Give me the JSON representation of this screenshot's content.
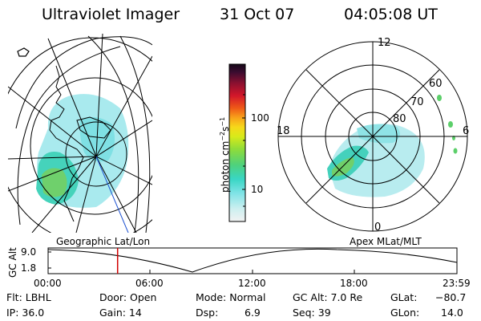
{
  "header": {
    "instrument": "Ultraviolet Imager",
    "date": "31 Oct 07",
    "time": "04:05:08 UT"
  },
  "colorbar": {
    "label": "photon cm",
    "exp1": "−2",
    "label_s": "s",
    "exp2": "−1",
    "ticks": [
      "100",
      "10"
    ]
  },
  "geo_panel": {
    "title": "Geographic Lat/Lon"
  },
  "polar_panel": {
    "title": "Apex  MLat/MLT",
    "mlt_labels": {
      "top": "12",
      "left": "18",
      "right": "6",
      "bottom": "0"
    },
    "mlat_labels": [
      "60",
      "70",
      "80"
    ]
  },
  "timeline": {
    "ylabel": "GC Alt",
    "yticks": [
      "9.0",
      "1.8"
    ],
    "xticks": [
      "00:00",
      "06:00",
      "12:00",
      "18:00",
      "23:59"
    ],
    "cursor_fraction": 0.17
  },
  "info": {
    "flt": "Flt: LBHL",
    "ip": "IP: 36.0",
    "door": "Door: Open",
    "gain": "Gain: 14",
    "mode": "Mode: Normal",
    "dsp_label": "Dsp:",
    "dsp_value": "6.9",
    "gcalt": "GC Alt: 7.0 Re",
    "seq": "Seq: 39",
    "glat_label": "GLat:",
    "glat_value": "−80.7",
    "glon_label": "GLon:",
    "glon_value": "14.0"
  },
  "colors": {
    "aurora_cyan": "#9be6ea",
    "aurora_teal": "#3fd6c6",
    "aurora_green": "#5ccf6a",
    "cursor": "#d00000"
  }
}
